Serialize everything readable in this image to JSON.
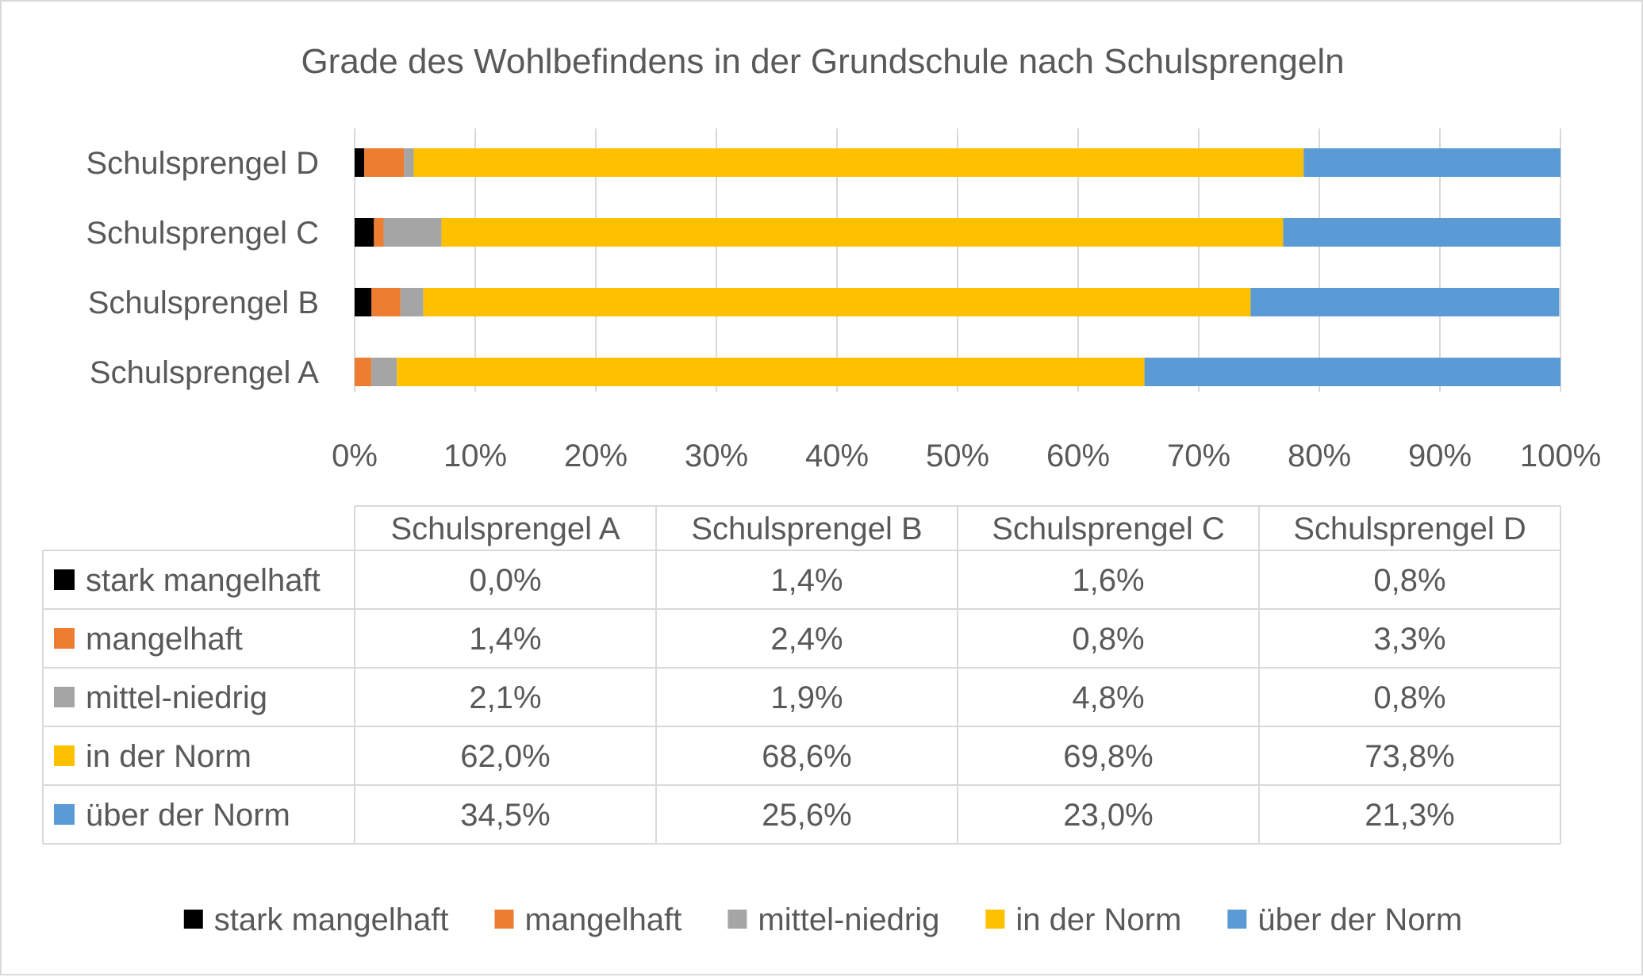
{
  "chart_data": {
    "type": "bar",
    "orientation": "horizontal",
    "stacked": "percent",
    "title": "Grade des Wohlbefindens in der Grundschule nach Schulsprengeln",
    "categories": [
      "Schulsprengel A",
      "Schulsprengel B",
      "Schulsprengel C",
      "Schulsprengel D"
    ],
    "series": [
      {
        "name": "stark mangelhaft",
        "color": "#000000",
        "values": [
          0.0,
          1.4,
          1.6,
          0.8
        ],
        "labels": [
          "0,0%",
          "1,4%",
          "1,6%",
          "0,8%"
        ]
      },
      {
        "name": "mangelhaft",
        "color": "#ED7D31",
        "values": [
          1.4,
          2.4,
          0.8,
          3.3
        ],
        "labels": [
          "1,4%",
          "2,4%",
          "0,8%",
          "3,3%"
        ]
      },
      {
        "name": "mittel-niedrig",
        "color": "#A5A5A5",
        "values": [
          2.1,
          1.9,
          4.8,
          0.8
        ],
        "labels": [
          "2,1%",
          "1,9%",
          "4,8%",
          "0,8%"
        ]
      },
      {
        "name": "in der Norm",
        "color": "#FFC000",
        "values": [
          62.0,
          68.6,
          69.8,
          73.8
        ],
        "labels": [
          "62,0%",
          "68,6%",
          "69,8%",
          "73,8%"
        ]
      },
      {
        "name": "über der Norm",
        "color": "#5B9BD5",
        "values": [
          34.5,
          25.6,
          23.0,
          21.3
        ],
        "labels": [
          "34,5%",
          "25,6%",
          "23,0%",
          "21,3%"
        ]
      }
    ],
    "x_ticks": [
      "0%",
      "10%",
      "20%",
      "30%",
      "40%",
      "50%",
      "60%",
      "70%",
      "80%",
      "90%",
      "100%"
    ],
    "xlim": [
      0,
      100
    ],
    "grid": "vertical",
    "legend": "bottom",
    "data_table": true
  }
}
